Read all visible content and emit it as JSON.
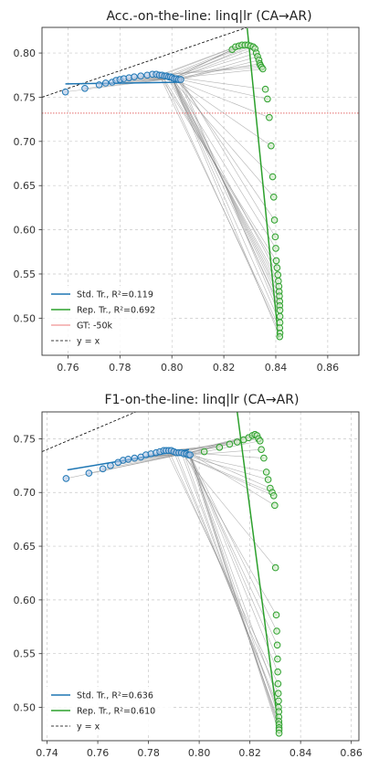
{
  "chart_data": [
    {
      "type": "scatter",
      "title": "Acc.-on-the-line: linq|lr  (CA→AR)",
      "xlabel": "",
      "ylabel": "",
      "xlim": [
        0.75,
        0.872
      ],
      "ylim": [
        0.458,
        0.829
      ],
      "xticks": [
        "0.76",
        "0.78",
        "0.80",
        "0.82",
        "0.84",
        "0.86"
      ],
      "yticks": [
        "0.50",
        "0.55",
        "0.60",
        "0.65",
        "0.70",
        "0.75",
        "0.80"
      ],
      "grid": true,
      "legend_position": "lower-left",
      "legend": [
        {
          "label": "Std. Tr., R²=0.119",
          "color": "#1f77b4",
          "style": "line"
        },
        {
          "label": "Rep. Tr., R²=0.692",
          "color": "#2ca02c",
          "style": "line"
        },
        {
          "label": "GT: -50k",
          "color": "#f4a6a6",
          "style": "line"
        },
        {
          "label": "y = x",
          "color": "#000000",
          "style": "dashed"
        }
      ],
      "gt_value": 0.732,
      "fit_std": {
        "x": [
          0.759,
          0.803
        ],
        "y": [
          0.765,
          0.767
        ]
      },
      "fit_rep": {
        "x": [
          0.829,
          0.841
        ],
        "y": [
          0.828,
          0.478
        ]
      },
      "std_anchor": [
        0.8,
        0.771
      ],
      "std_points": {
        "x": [
          0.759,
          0.7665,
          0.772,
          0.7745,
          0.777,
          0.7785,
          0.78,
          0.7815,
          0.7835,
          0.7855,
          0.788,
          0.7905,
          0.7925,
          0.794,
          0.7952,
          0.7962,
          0.7972,
          0.798,
          0.7988,
          0.7995,
          0.8002,
          0.801,
          0.8018,
          0.8026,
          0.8034
        ],
        "y": [
          0.756,
          0.76,
          0.764,
          0.766,
          0.767,
          0.769,
          0.77,
          0.771,
          0.772,
          0.773,
          0.774,
          0.775,
          0.776,
          0.776,
          0.775,
          0.775,
          0.774,
          0.774,
          0.773,
          0.773,
          0.772,
          0.771,
          0.771,
          0.77,
          0.77
        ]
      },
      "rep_points": {
        "x": [
          0.8232,
          0.8245,
          0.8258,
          0.827,
          0.8282,
          0.8293,
          0.8303,
          0.8313,
          0.832,
          0.8325,
          0.833,
          0.8335,
          0.8338,
          0.8341,
          0.8345,
          0.835,
          0.836,
          0.8368,
          0.8375,
          0.8382,
          0.8388,
          0.8392,
          0.8395,
          0.8398,
          0.84,
          0.8402,
          0.8405,
          0.8408,
          0.841,
          0.8412,
          0.8413,
          0.8414,
          0.8415,
          0.8415,
          0.8416,
          0.8416,
          0.8416,
          0.8415,
          0.8416,
          0.8415
        ],
        "y": [
          0.804,
          0.807,
          0.808,
          0.809,
          0.809,
          0.809,
          0.808,
          0.807,
          0.805,
          0.8,
          0.796,
          0.792,
          0.788,
          0.786,
          0.784,
          0.782,
          0.759,
          0.748,
          0.727,
          0.695,
          0.66,
          0.637,
          0.611,
          0.592,
          0.579,
          0.565,
          0.557,
          0.549,
          0.542,
          0.536,
          0.53,
          0.525,
          0.519,
          0.514,
          0.509,
          0.502,
          0.495,
          0.489,
          0.483,
          0.479
        ]
      }
    },
    {
      "type": "scatter",
      "title": "F1-on-the-line: linq|lr  (CA→AR)",
      "xlabel": "",
      "ylabel": "",
      "xlim": [
        0.738,
        0.863
      ],
      "ylim": [
        0.469,
        0.775
      ],
      "xticks": [
        "0.74",
        "0.76",
        "0.78",
        "0.80",
        "0.82",
        "0.84",
        "0.86"
      ],
      "yticks": [
        "0.50",
        "0.55",
        "0.60",
        "0.65",
        "0.70",
        "0.75"
      ],
      "grid": true,
      "legend_position": "lower-left",
      "legend": [
        {
          "label": "Std. Tr., R²=0.636",
          "color": "#1f77b4",
          "style": "line"
        },
        {
          "label": "Rep. Tr., R²=0.610",
          "color": "#2ca02c",
          "style": "line"
        },
        {
          "label": "y = x",
          "color": "#000000",
          "style": "dashed"
        }
      ],
      "fit_std": {
        "x": [
          0.748,
          0.796
        ],
        "y": [
          0.721,
          0.74
        ]
      },
      "fit_rep": {
        "x": [
          0.815,
          0.831
        ],
        "y": [
          0.775,
          0.487
        ]
      },
      "std_anchor": [
        0.796,
        0.737
      ],
      "std_points": {
        "x": [
          0.7475,
          0.7565,
          0.762,
          0.765,
          0.768,
          0.77,
          0.772,
          0.7745,
          0.777,
          0.779,
          0.781,
          0.783,
          0.7845,
          0.786,
          0.787,
          0.788,
          0.789,
          0.79,
          0.791,
          0.792,
          0.793,
          0.794,
          0.795,
          0.7958,
          0.7964
        ],
        "y": [
          0.713,
          0.718,
          0.722,
          0.725,
          0.728,
          0.73,
          0.731,
          0.732,
          0.733,
          0.735,
          0.736,
          0.737,
          0.738,
          0.739,
          0.739,
          0.739,
          0.739,
          0.738,
          0.737,
          0.737,
          0.737,
          0.736,
          0.736,
          0.735,
          0.735
        ]
      },
      "rep_points": {
        "x": [
          0.802,
          0.808,
          0.812,
          0.815,
          0.8175,
          0.8195,
          0.821,
          0.822,
          0.8228,
          0.8234,
          0.824,
          0.8245,
          0.8255,
          0.8265,
          0.8272,
          0.828,
          0.8288,
          0.8294,
          0.8298,
          0.8301,
          0.8304,
          0.8306,
          0.8308,
          0.8309,
          0.831,
          0.8311,
          0.8312,
          0.8313,
          0.8313,
          0.8314,
          0.8314,
          0.8314,
          0.8315,
          0.8315,
          0.8315,
          0.8315
        ],
        "y": [
          0.738,
          0.742,
          0.745,
          0.747,
          0.749,
          0.751,
          0.753,
          0.754,
          0.753,
          0.75,
          0.748,
          0.74,
          0.732,
          0.719,
          0.712,
          0.704,
          0.7,
          0.697,
          0.688,
          0.63,
          0.586,
          0.571,
          0.558,
          0.545,
          0.533,
          0.522,
          0.513,
          0.506,
          0.5,
          0.496,
          0.491,
          0.487,
          0.484,
          0.481,
          0.479,
          0.476
        ]
      }
    }
  ],
  "colors": {
    "std": "#1f77b4",
    "std_fill": "#aec7e8",
    "rep": "#2ca02c",
    "rep_fill": "#c9e8c2",
    "gt": "#e36a6a",
    "connector": "#8c8c8c",
    "grid": "#c8c8c8",
    "axis": "#333333"
  }
}
